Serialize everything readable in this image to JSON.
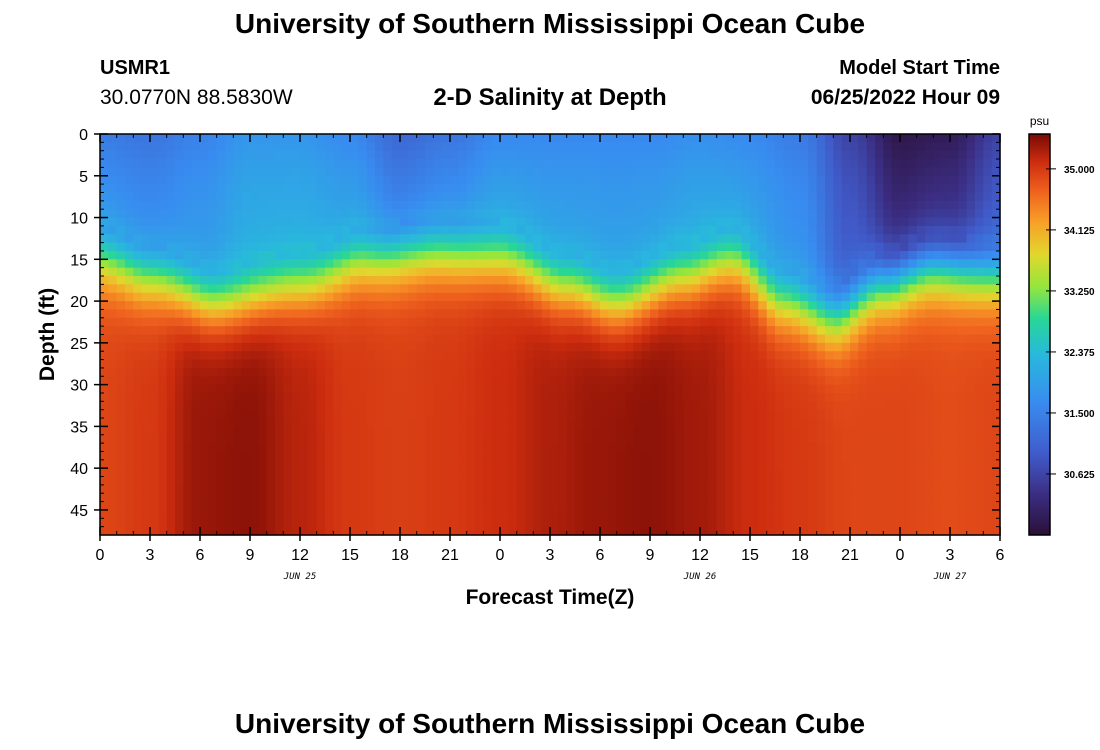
{
  "header": {
    "title": "University of Southern Mississippi Ocean Cube",
    "station_id": "USMR1",
    "station_coords": "30.0770N  88.5830W",
    "chart_title": "2-D Salinity at Depth",
    "model_label": "Model Start Time",
    "model_time": "06/25/2022 Hour 09"
  },
  "footer": {
    "title": "University of Southern Mississippi Ocean Cube"
  },
  "chart_data": {
    "type": "heatmap",
    "title": "2-D Salinity at Depth",
    "xlabel": "Forecast Time(Z)",
    "ylabel": "Depth (ft)",
    "xlim": [
      0,
      54
    ],
    "ylim": [
      48,
      0
    ],
    "x_ticks": [
      0,
      3,
      6,
      9,
      12,
      15,
      18,
      21,
      24,
      27,
      30,
      33,
      36,
      39,
      42,
      45,
      48,
      51,
      54
    ],
    "x_tick_labels": [
      "0",
      "3",
      "6",
      "9",
      "12",
      "15",
      "18",
      "21",
      "0",
      "3",
      "6",
      "9",
      "12",
      "15",
      "18",
      "21",
      "0",
      "3",
      "6"
    ],
    "y_ticks": [
      0,
      5,
      10,
      15,
      20,
      25,
      30,
      35,
      40,
      45
    ],
    "y_tick_labels": [
      "0",
      "5",
      "10",
      "15",
      "20",
      "25",
      "30",
      "35",
      "40",
      "45"
    ],
    "date_labels": [
      {
        "x": 12,
        "label": "JUN 25"
      },
      {
        "x": 36,
        "label": "JUN 26"
      },
      {
        "x": 51,
        "label": "JUN 27"
      }
    ],
    "colorbar": {
      "unit": "psu",
      "min": 29.75,
      "max": 35.5,
      "ticks": [
        35.0,
        34.125,
        33.25,
        32.375,
        31.5,
        30.625
      ],
      "tick_labels": [
        "35.000",
        "34.125",
        "33.250",
        "32.375",
        "31.500",
        "30.625"
      ]
    },
    "halocline_depth_ft": {
      "x": [
        0,
        3,
        7,
        12,
        16,
        20,
        24,
        28,
        31,
        35,
        38,
        41,
        44,
        47,
        50,
        54
      ],
      "depth": [
        15,
        17,
        20,
        18,
        15,
        14,
        14.5,
        18,
        20,
        17,
        15,
        20,
        22,
        18,
        16,
        17
      ]
    },
    "surface_salinity_psu": {
      "x": [
        0,
        3,
        6,
        9,
        12,
        15,
        18,
        21,
        24,
        27,
        30,
        33,
        36,
        39,
        42,
        45,
        48,
        51,
        54
      ],
      "values": [
        31.4,
        31.3,
        31.5,
        31.8,
        31.8,
        31.6,
        31.1,
        31.3,
        31.6,
        31.6,
        31.6,
        31.6,
        31.7,
        31.6,
        31.4,
        30.6,
        29.9,
        30.0,
        30.6
      ]
    },
    "bottom_salinity_psu": {
      "x": [
        0,
        3,
        6,
        9,
        12,
        15,
        18,
        21,
        24,
        27,
        30,
        33,
        36,
        39,
        42,
        45,
        48,
        51,
        54
      ],
      "values": [
        34.9,
        35.0,
        35.35,
        35.4,
        35.2,
        35.0,
        34.95,
        35.0,
        35.1,
        35.25,
        35.35,
        35.4,
        35.3,
        35.1,
        35.0,
        34.9,
        34.9,
        34.85,
        34.9
      ]
    }
  }
}
